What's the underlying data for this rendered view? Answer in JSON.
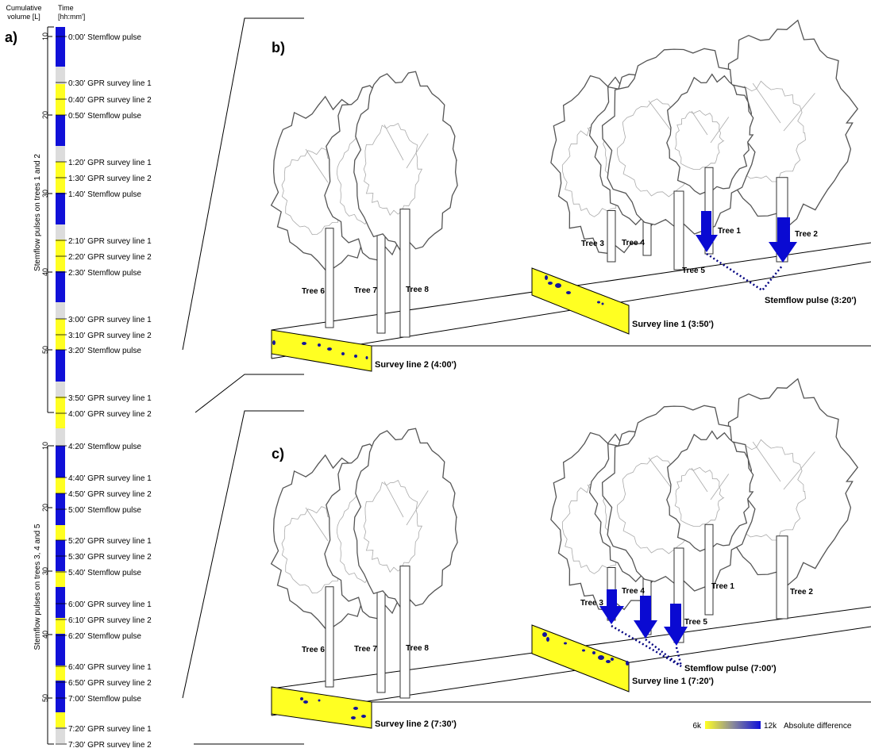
{
  "header": {
    "cumulative_volume": "Cumulative volume [L]",
    "time": "Time [hh:mm']"
  },
  "colors": {
    "stemflow": "#1010d8",
    "gpr": "#ffff22",
    "idle": "#dcdcdc",
    "blob": "#14149a",
    "arrow": "#0a0ad2"
  },
  "panel_a": {
    "label": "a)",
    "group1": {
      "label": "Stemflow pulses on trees 1 and 2",
      "ticks": [
        "10",
        "20",
        "30",
        "40",
        "50"
      ]
    },
    "group2": {
      "label": "Stemflow pulses on trees 3, 4 and 5",
      "ticks": [
        "10",
        "20",
        "30",
        "40",
        "50"
      ]
    },
    "events": [
      {
        "time": "0:00'",
        "label": "Stemflow pulse"
      },
      {
        "time": "0:30'",
        "label": "GPR survey line 1"
      },
      {
        "time": "0:40'",
        "label": "GPR survey line 2"
      },
      {
        "time": "0:50'",
        "label": "Stemflow pulse"
      },
      {
        "time": "1:20'",
        "label": "GPR survey line 1"
      },
      {
        "time": "1:30'",
        "label": "GPR survey line 2"
      },
      {
        "time": "1:40'",
        "label": "Stemflow pulse"
      },
      {
        "time": "2:10'",
        "label": "GPR survey line 1"
      },
      {
        "time": "2:20'",
        "label": "GPR survey line 2"
      },
      {
        "time": "2:30'",
        "label": "Stemflow pulse"
      },
      {
        "time": "3:00'",
        "label": "GPR survey line 1"
      },
      {
        "time": "3:10'",
        "label": "GPR survey line 2"
      },
      {
        "time": "3:20'",
        "label": "Stemflow pulse"
      },
      {
        "time": "3:50'",
        "label": "GPR survey line 1"
      },
      {
        "time": "4:00'",
        "label": "GPR survey line 2"
      },
      {
        "time": "4:20'",
        "label": "Stemflow pulse"
      },
      {
        "time": "4:40'",
        "label": "GPR survey line 1"
      },
      {
        "time": "4:50'",
        "label": "GPR survey line 2"
      },
      {
        "time": "5:00'",
        "label": "Stemflow pulse"
      },
      {
        "time": "5:20'",
        "label": "GPR survey line 1"
      },
      {
        "time": "5:30'",
        "label": "GPR survey line 2"
      },
      {
        "time": "5:40'",
        "label": "Stemflow pulse"
      },
      {
        "time": "6:00'",
        "label": "GPR survey line 1"
      },
      {
        "time": "6:10'",
        "label": "GPR survey line 2"
      },
      {
        "time": "6:20'",
        "label": "Stemflow pulse"
      },
      {
        "time": "6:40'",
        "label": "GPR survey line 1"
      },
      {
        "time": "6:50'",
        "label": "GPR survey line 2"
      },
      {
        "time": "7:00'",
        "label": "Stemflow pulse"
      },
      {
        "time": "7:20'",
        "label": "GPR survey line 1"
      },
      {
        "time": "7:30'",
        "label": "GPR survey line 2"
      }
    ]
  },
  "panel_b": {
    "label": "b)",
    "trees": [
      "Tree 1",
      "Tree 2",
      "Tree 3",
      "Tree 4",
      "Tree 5",
      "Tree 6",
      "Tree 7",
      "Tree 8"
    ],
    "pulse": "Stemflow pulse (3:20')",
    "line1": "Survey line 1 (3:50')",
    "line2": "Survey line 2 (4:00')"
  },
  "panel_c": {
    "label": "c)",
    "trees": [
      "Tree 1",
      "Tree 2",
      "Tree 3",
      "Tree 4",
      "Tree 5",
      "Tree 6",
      "Tree 7",
      "Tree 8"
    ],
    "pulse": "Stemflow pulse (7:00')",
    "line1": "Survey line 1 (7:20')",
    "line2": "Survey line 2 (7:30')"
  },
  "legend": {
    "min": "6k",
    "max": "12k",
    "label": "Absolute difference"
  }
}
